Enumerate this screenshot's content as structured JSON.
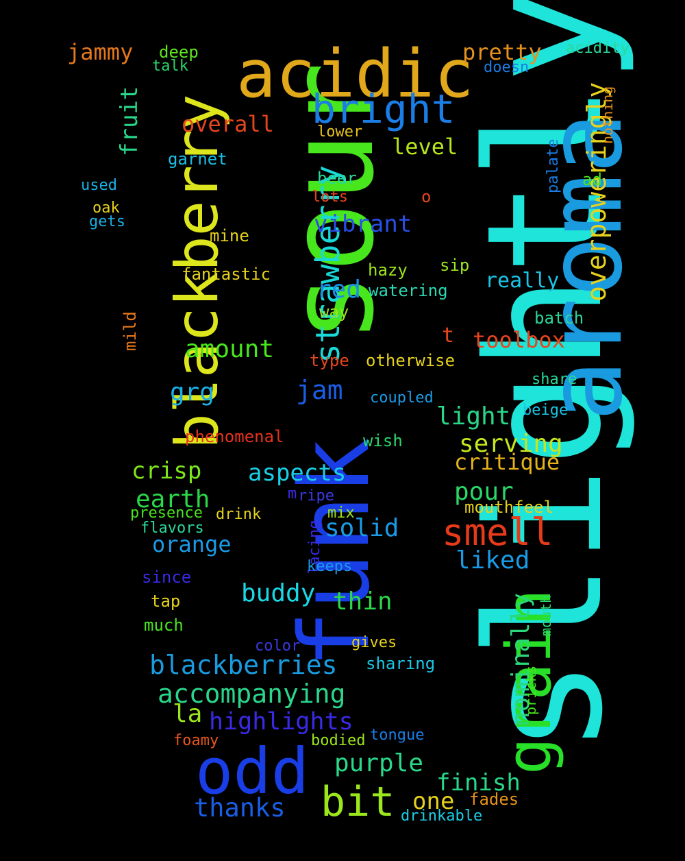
{
  "background_color": "#000000",
  "words": [
    {
      "text": "slightly",
      "color": "#1ee4da"
    },
    {
      "text": "aroma",
      "color": "#1a9be0"
    },
    {
      "text": "sour",
      "color": "#48e61c"
    },
    {
      "text": "funk",
      "color": "#1a3ee6"
    },
    {
      "text": "blackberry",
      "color": "#dde61c"
    },
    {
      "text": "grain",
      "color": "#28e028"
    },
    {
      "text": "acidic",
      "color": "#e0a81a"
    },
    {
      "text": "odd",
      "color": "#1a3ee6"
    },
    {
      "text": "bright",
      "color": "#1a7ee6"
    },
    {
      "text": "strawberry",
      "color": "#1ad8d8"
    },
    {
      "text": "smell",
      "color": "#e63a1a"
    },
    {
      "text": "bit",
      "color": "#9ce61c"
    },
    {
      "text": "overpoweringly",
      "color": "#e6d21c"
    },
    {
      "text": "blackberries",
      "color": "#1a9be0"
    },
    {
      "text": "accompanying",
      "color": "#2ad68c"
    },
    {
      "text": "highlights",
      "color": "#3a2ae6"
    },
    {
      "text": "thanks",
      "color": "#1a5ee6"
    },
    {
      "text": "purple",
      "color": "#2ad88a"
    },
    {
      "text": "nominally",
      "color": "#2ad87a"
    },
    {
      "text": "jammy",
      "color": "#e6781c"
    },
    {
      "text": "pretty",
      "color": "#e6921c"
    },
    {
      "text": "fruit",
      "color": "#2ad88a"
    },
    {
      "text": "overall",
      "color": "#e6461c"
    },
    {
      "text": "level",
      "color": "#b6e61c"
    },
    {
      "text": "vibrant",
      "color": "#2a4ee6"
    },
    {
      "text": "red",
      "color": "#1a8ee6"
    },
    {
      "text": "really",
      "color": "#1ac6e6"
    },
    {
      "text": "amount",
      "color": "#48e61c"
    },
    {
      "text": "jam",
      "color": "#1a5ee6"
    },
    {
      "text": "grg",
      "color": "#1ab2e6"
    },
    {
      "text": "light",
      "color": "#2ad88a"
    },
    {
      "text": "serving",
      "color": "#c6e61c"
    },
    {
      "text": "toolbox",
      "color": "#e6461c"
    },
    {
      "text": "crisp",
      "color": "#7ee61c"
    },
    {
      "text": "aspects",
      "color": "#1ad0e6"
    },
    {
      "text": "critique",
      "color": "#e6b21c"
    },
    {
      "text": "pour",
      "color": "#2ad86a"
    },
    {
      "text": "earth",
      "color": "#2ad84a"
    },
    {
      "text": "solid",
      "color": "#1a9be6"
    },
    {
      "text": "orange",
      "color": "#1a9be6"
    },
    {
      "text": "liked",
      "color": "#1a9be6"
    },
    {
      "text": "buddy",
      "color": "#1ad8e6"
    },
    {
      "text": "thin",
      "color": "#2ad84a"
    },
    {
      "text": "mouthfeel",
      "color": "#e6d21c"
    },
    {
      "text": "la",
      "color": "#9ce61c"
    },
    {
      "text": "finish",
      "color": "#2ad88a"
    },
    {
      "text": "one",
      "color": "#e6d21c"
    },
    {
      "text": "fades",
      "color": "#e6921c"
    },
    {
      "text": "drinkable",
      "color": "#1ad0e6"
    },
    {
      "text": "deep",
      "color": "#5ee61c"
    },
    {
      "text": "talk",
      "color": "#2ad86a"
    },
    {
      "text": "acidity",
      "color": "#2ad89a"
    },
    {
      "text": "doesn",
      "color": "#1a7ee6"
    },
    {
      "text": "nothing",
      "color": "#e6921c"
    },
    {
      "text": "lower",
      "color": "#e6c21c"
    },
    {
      "text": "garnet",
      "color": "#1ac0e6"
    },
    {
      "text": "palate",
      "color": "#1a7ee6"
    },
    {
      "text": "ad",
      "color": "#48e61c"
    },
    {
      "text": "used",
      "color": "#1ab2e6"
    },
    {
      "text": "beer",
      "color": "#2ad89a"
    },
    {
      "text": "lots",
      "color": "#e6461c"
    },
    {
      "text": "o",
      "color": "#e6461c"
    },
    {
      "text": "oak",
      "color": "#e6d21c"
    },
    {
      "text": "gets",
      "color": "#1ab2e6"
    },
    {
      "text": "mine",
      "color": "#e6d21c"
    },
    {
      "text": "sip",
      "color": "#9ce61c"
    },
    {
      "text": "hazy",
      "color": "#9ce61c"
    },
    {
      "text": "fantastic",
      "color": "#e6d21c"
    },
    {
      "text": "watering",
      "color": "#2ad8b4"
    },
    {
      "text": "mild",
      "color": "#e6781c"
    },
    {
      "text": "way",
      "color": "#9ce61c"
    },
    {
      "text": "batch",
      "color": "#2ad89a"
    },
    {
      "text": "t",
      "color": "#e6461c"
    },
    {
      "text": "type",
      "color": "#e6461c"
    },
    {
      "text": "otherwise",
      "color": "#e6d21c"
    },
    {
      "text": "share",
      "color": "#2ad89a"
    },
    {
      "text": "coupled",
      "color": "#1a9be6"
    },
    {
      "text": "beige",
      "color": "#1ac6e6"
    },
    {
      "text": "phenomenal",
      "color": "#e6321c"
    },
    {
      "text": "wish",
      "color": "#2ad86a"
    },
    {
      "text": "m",
      "color": "#3a2ae6"
    },
    {
      "text": "ripe",
      "color": "#3a3ae6"
    },
    {
      "text": "presence",
      "color": "#48e61c"
    },
    {
      "text": "drink",
      "color": "#e6d21c"
    },
    {
      "text": "mix",
      "color": "#9ce61c"
    },
    {
      "text": "flavors",
      "color": "#2ad89a"
    },
    {
      "text": "lacing",
      "color": "#3a2ae6"
    },
    {
      "text": "keeps",
      "color": "#1a9be6"
    },
    {
      "text": "since",
      "color": "#3a2ae6"
    },
    {
      "text": "tap",
      "color": "#e6d21c"
    },
    {
      "text": "mouth",
      "color": "#2ad86a"
    },
    {
      "text": "much",
      "color": "#48e61c"
    },
    {
      "text": "color",
      "color": "#3a3ae6"
    },
    {
      "text": "gives",
      "color": "#e6d21c"
    },
    {
      "text": "sharing",
      "color": "#1ac6e6"
    },
    {
      "text": "pricks",
      "color": "#48e61c"
    },
    {
      "text": "foamy",
      "color": "#e6561c"
    },
    {
      "text": "bodied",
      "color": "#9ce61c"
    },
    {
      "text": "tongue",
      "color": "#1a7ee6"
    }
  ]
}
